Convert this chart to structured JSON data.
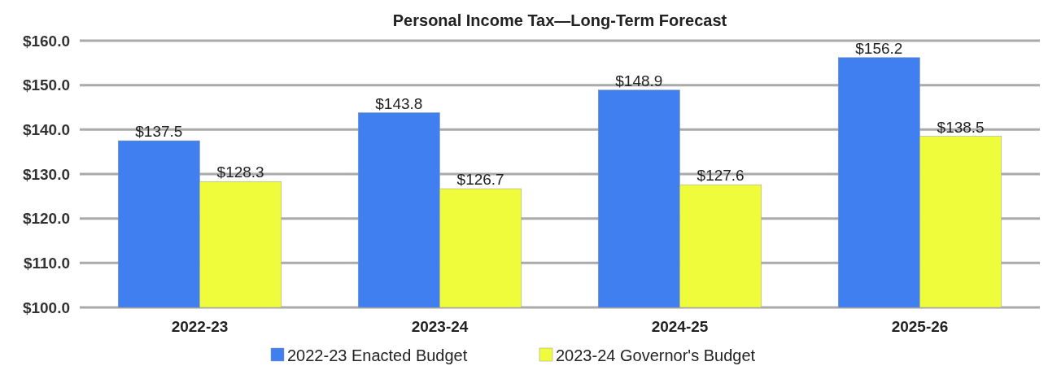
{
  "chart_data": {
    "type": "bar",
    "title": "Personal Income Tax—Long-Term Forecast",
    "categories": [
      "2022-23",
      "2023-24",
      "2024-25",
      "2025-26"
    ],
    "series": [
      {
        "name": "2022-23 Enacted Budget",
        "color": "#3f7fef",
        "values": [
          137.5,
          143.8,
          148.9,
          156.2
        ],
        "value_labels": [
          "$137.5",
          "$143.8",
          "$148.9",
          "$156.2"
        ]
      },
      {
        "name": "2023-24 Governor's Budget",
        "color": "#eefc3c",
        "values": [
          128.3,
          126.7,
          127.6,
          138.5
        ],
        "value_labels": [
          "$128.3",
          "$126.7",
          "$127.6",
          "$138.5"
        ]
      }
    ],
    "ylim": [
      100,
      160
    ],
    "yticks": [
      {
        "value": 100,
        "label": "$100.0"
      },
      {
        "value": 110,
        "label": "$110.0"
      },
      {
        "value": 120,
        "label": "$120.0"
      },
      {
        "value": 130,
        "label": "$130.0"
      },
      {
        "value": 140,
        "label": "$140.0"
      },
      {
        "value": 150,
        "label": "$150.0"
      },
      {
        "value": 160,
        "label": "$160.0"
      }
    ],
    "grid": "y",
    "legend": "bottom"
  }
}
